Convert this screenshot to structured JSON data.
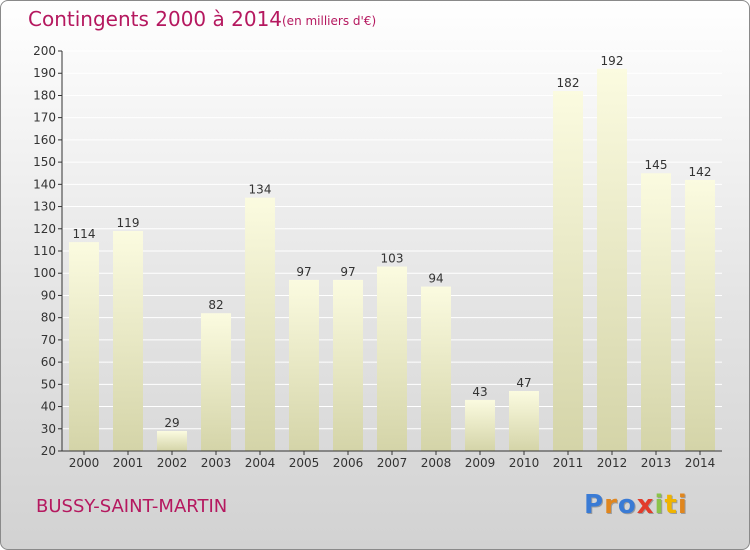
{
  "title": "Contingents 2000 à 2014",
  "subtitle": "(en milliers d'€)",
  "city": "BUSSY-SAINT-MARTIN",
  "logo": {
    "text": "Proxiti",
    "letter_colors": [
      "#3a7bd5",
      "#e0861e",
      "#3a7bd5",
      "#e23c2b",
      "#8bc34a",
      "#f0b400",
      "#e0861e"
    ]
  },
  "colors": {
    "title": "#b5185f",
    "bar_top": "#fbfbe0",
    "bar_bottom": "#d4d4a8",
    "axis": "#333333",
    "grid": "#ffffff"
  },
  "chart_data": {
    "type": "bar",
    "title": "Contingents 2000 à 2014",
    "subtitle": "(en milliers d'€)",
    "categories": [
      "2000",
      "2001",
      "2002",
      "2003",
      "2004",
      "2005",
      "2006",
      "2007",
      "2008",
      "2009",
      "2010",
      "2011",
      "2012",
      "2013",
      "2014"
    ],
    "values": [
      114,
      119,
      29,
      82,
      134,
      97,
      97,
      103,
      94,
      43,
      47,
      182,
      192,
      145,
      142
    ],
    "ylim": [
      20,
      200
    ],
    "yticks": [
      20,
      30,
      40,
      50,
      60,
      70,
      80,
      90,
      100,
      110,
      120,
      130,
      140,
      150,
      160,
      170,
      180,
      190,
      200
    ],
    "grid": true,
    "data_labels": true
  }
}
